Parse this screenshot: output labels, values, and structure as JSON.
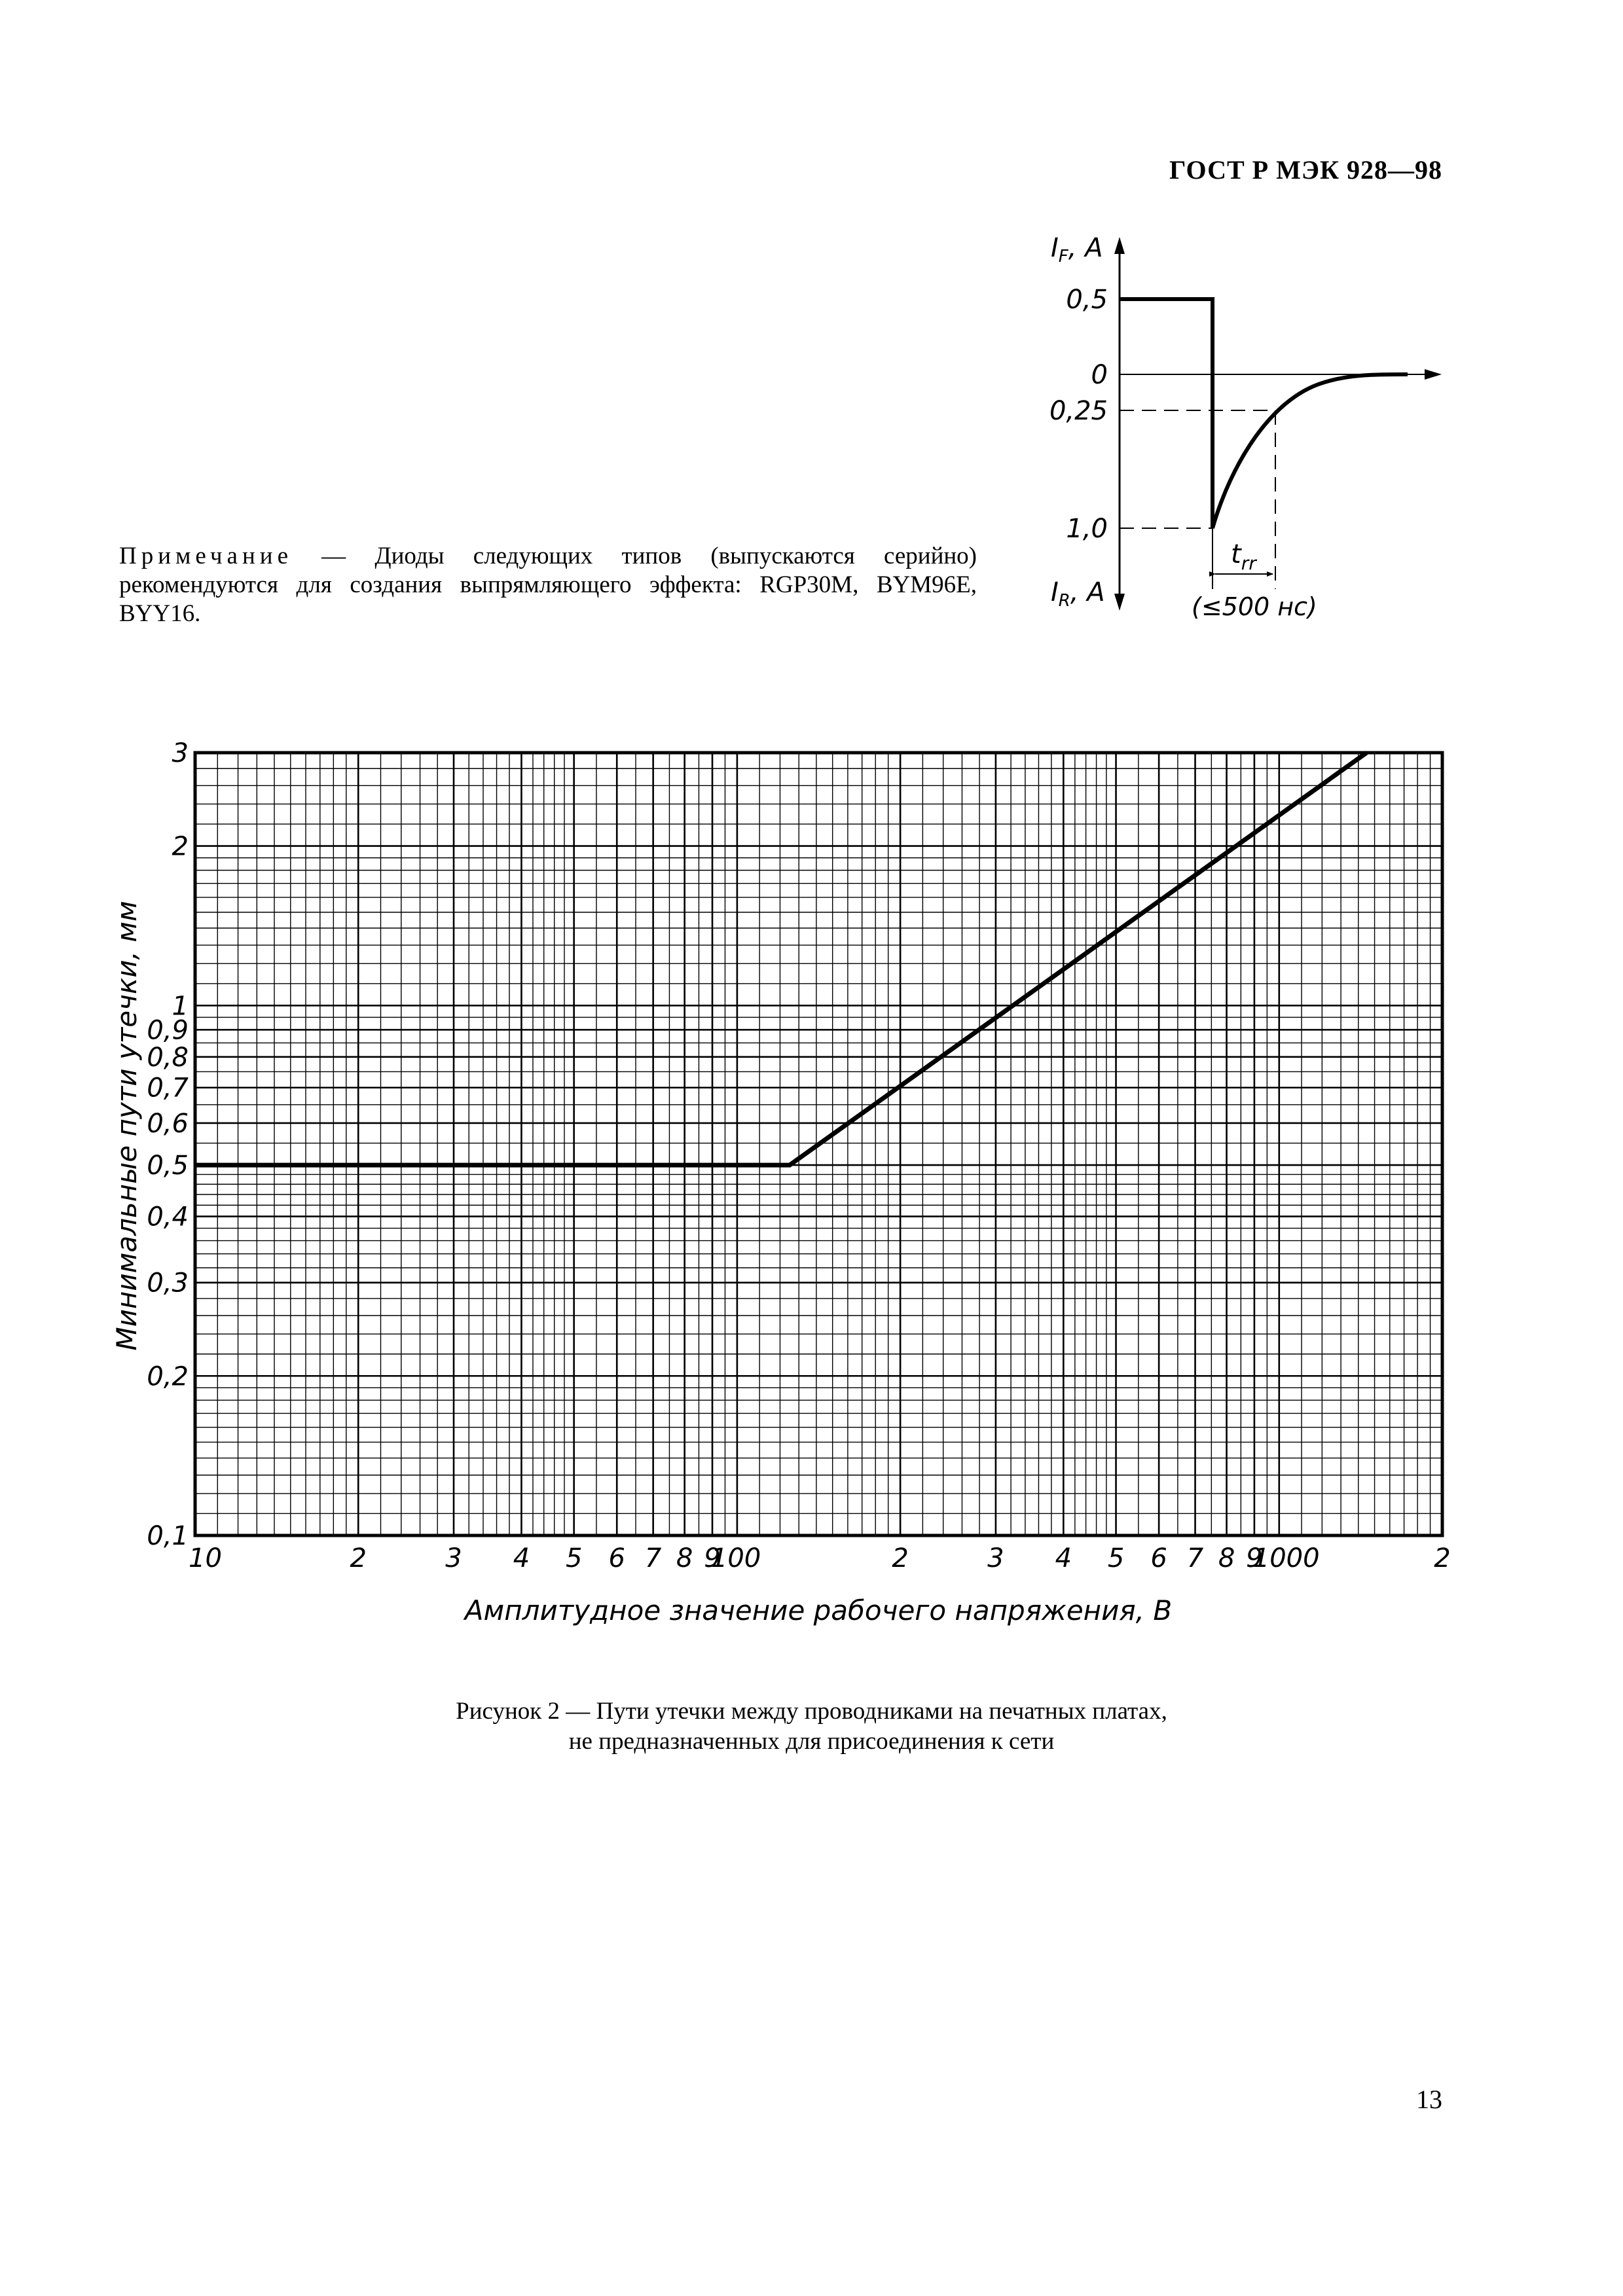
{
  "header": {
    "standard_code": "ГОСТ Р МЭК 928—98"
  },
  "note": {
    "label": "Примечание",
    "text": " — Диоды следующих типов (выпускаются серийно) рекомендуются для создания выпрямляющего эффекта: RGP30M, BYM96E, BYY16."
  },
  "pulse_diagram": {
    "if_label_main": "I",
    "if_label_sub": "F",
    "if_label_unit": ", A",
    "ir_label_main": "I",
    "ir_label_sub": "R",
    "ir_label_unit": ", A",
    "level_05": "0,5",
    "level_0": "0",
    "level_025": "0,25",
    "level_10": "1,0",
    "trr_main": "t",
    "trr_sub": "rr",
    "trr_limit": "(≤500 нс)"
  },
  "chart_data": {
    "type": "line",
    "x_scale": "log",
    "y_scale": "log",
    "xlim": [
      10,
      2000
    ],
    "ylim": [
      0.1,
      3
    ],
    "xlabel": "Амплитудное значение рабочего напряжения, В",
    "ylabel": "Минимальные пути утечки, мм",
    "x_ticks": [
      {
        "v": 10,
        "label": "10"
      },
      {
        "v": 20,
        "label": "2"
      },
      {
        "v": 30,
        "label": "3"
      },
      {
        "v": 40,
        "label": "4"
      },
      {
        "v": 50,
        "label": "5"
      },
      {
        "v": 60,
        "label": "6"
      },
      {
        "v": 70,
        "label": "7"
      },
      {
        "v": 80,
        "label": "8"
      },
      {
        "v": 90,
        "label": "9"
      },
      {
        "v": 100,
        "label": "100"
      },
      {
        "v": 200,
        "label": "2"
      },
      {
        "v": 300,
        "label": "3"
      },
      {
        "v": 400,
        "label": "4"
      },
      {
        "v": 500,
        "label": "5"
      },
      {
        "v": 600,
        "label": "6"
      },
      {
        "v": 700,
        "label": "7"
      },
      {
        "v": 800,
        "label": "8"
      },
      {
        "v": 900,
        "label": "9"
      },
      {
        "v": 1000,
        "label": "1000"
      },
      {
        "v": 2000,
        "label": "2"
      }
    ],
    "y_ticks": [
      {
        "v": 0.1,
        "label": "0,1"
      },
      {
        "v": 0.2,
        "label": "0,2"
      },
      {
        "v": 0.3,
        "label": "0,3"
      },
      {
        "v": 0.4,
        "label": "0,4"
      },
      {
        "v": 0.5,
        "label": "0,5"
      },
      {
        "v": 0.6,
        "label": "0,6"
      },
      {
        "v": 0.7,
        "label": "0,7"
      },
      {
        "v": 0.8,
        "label": "0,8"
      },
      {
        "v": 0.9,
        "label": "0,9"
      },
      {
        "v": 1,
        "label": "1"
      },
      {
        "v": 2,
        "label": "2"
      },
      {
        "v": 3,
        "label": "3"
      }
    ],
    "series": [
      {
        "x": [
          10,
          125,
          1450
        ],
        "y": [
          0.5,
          0.5,
          3.0
        ]
      }
    ]
  },
  "caption": {
    "line1": "Рисунок 2 — Пути утечки между проводниками на печатных платах,",
    "line2": "не предназначенных для присоединения к сети"
  },
  "page_number": "13"
}
